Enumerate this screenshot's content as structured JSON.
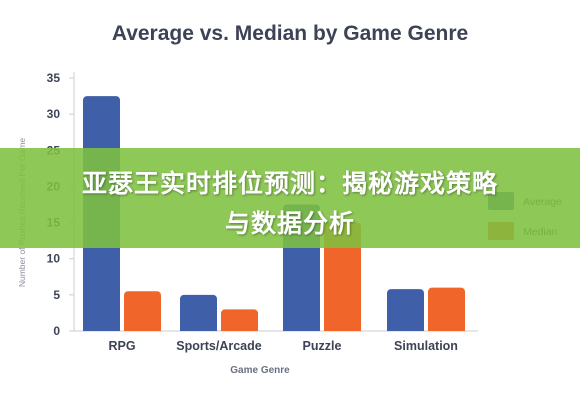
{
  "chart_data": {
    "type": "bar",
    "title": "Average vs. Median by Game Genre",
    "xlabel": "Game Genre",
    "ylabel": "Number of Pushes Received Per Game",
    "ylim": [
      0,
      35
    ],
    "yticks": [
      0,
      5,
      10,
      15,
      20,
      25,
      30,
      35
    ],
    "categories": [
      "RPG",
      "Sports/Arcade",
      "Puzzle",
      "Simulation"
    ],
    "series": [
      {
        "name": "Average",
        "color": "#3f5fa8",
        "values": [
          32.5,
          5,
          17.5,
          5.8
        ]
      },
      {
        "name": "Median",
        "color": "#f0662a",
        "values": [
          5.5,
          3,
          15,
          6
        ]
      }
    ],
    "legend_position": "right",
    "grid": false
  },
  "overlay": {
    "line1": "亚瑟王实时排位预测：揭秘游戏策略",
    "line2": "与数据分析"
  }
}
